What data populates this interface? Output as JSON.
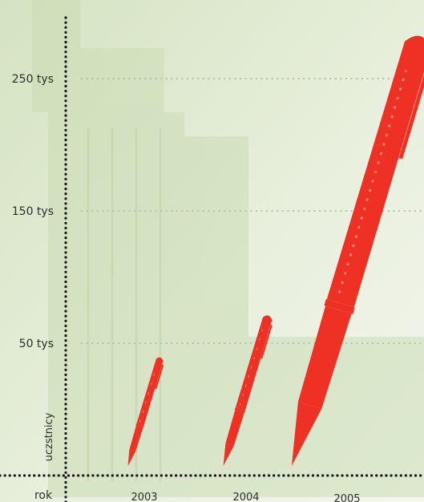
{
  "chart_data": {
    "type": "bar",
    "title": "",
    "xlabel": "rok",
    "ylabel": "uczstnicy",
    "categories": [
      "2003",
      "2004",
      "2005"
    ],
    "series": [
      {
        "values": [
          40000,
          72000,
          285000
        ]
      }
    ],
    "yticks": [
      {
        "value": 50000,
        "label": "50 tys"
      },
      {
        "value": 150000,
        "label": "150 tys"
      },
      {
        "value": 250000,
        "label": "250 tys"
      }
    ],
    "ylim": [
      0,
      300000
    ],
    "grid": true,
    "mark_style": "fountain-pen",
    "mark_color": "#ee3124",
    "grid_color": "#b8bdb3",
    "axis_color": "#1a1a1a"
  }
}
